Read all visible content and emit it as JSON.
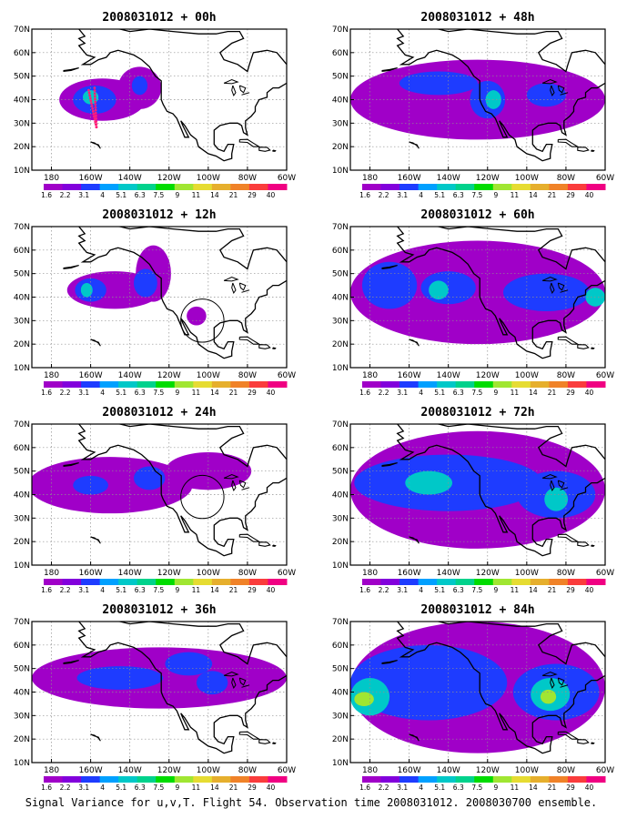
{
  "caption": "Signal Variance for u,v,T. Flight 54. Observation time 2008031012. 2008030700 ensemble.",
  "chart_data": [
    {
      "type": "heatmap",
      "title": "2008031012 + 00h",
      "xticks": [
        "180",
        "160W",
        "140W",
        "120W",
        "100W",
        "80W",
        "60W"
      ],
      "yticks": [
        "10N",
        "20N",
        "30N",
        "40N",
        "50N",
        "60N",
        "70N"
      ],
      "xlim": [
        -190,
        -60
      ],
      "ylim": [
        10,
        70
      ],
      "grid": true,
      "colorbar": {
        "levels": [
          "1.6",
          "2.2",
          "3.1",
          "4",
          "5.1",
          "6.3",
          "7.5",
          "9",
          "11",
          "14",
          "21",
          "29",
          "40"
        ],
        "colors": [
          "#a000c8",
          "#8200dc",
          "#1e3cff",
          "#00a0ff",
          "#00c8c8",
          "#00d28c",
          "#00dc00",
          "#a0e632",
          "#e6dc32",
          "#e6af2d",
          "#f08228",
          "#fa3c3c",
          "#f00082"
        ]
      },
      "regions": [
        {
          "lon": -154,
          "lat": 40,
          "rx": 22,
          "ry": 9,
          "level": "1.6"
        },
        {
          "lon": -135,
          "lat": 45,
          "rx": 11,
          "ry": 9,
          "level": "1.6"
        },
        {
          "lon": -158,
          "lat": 40,
          "rx": 11,
          "ry": 6,
          "level": "3.1"
        },
        {
          "lon": -135,
          "lat": 46,
          "rx": 4,
          "ry": 4,
          "level": "3.1"
        },
        {
          "lon": -160,
          "lat": 41,
          "rx": 4,
          "ry": 3,
          "level": "5.1"
        }
      ],
      "circles": [],
      "track": true
    },
    {
      "type": "heatmap",
      "title": "2008031012 + 48h",
      "xticks": [
        "180",
        "160W",
        "140W",
        "120W",
        "100W",
        "80W",
        "60W"
      ],
      "yticks": [
        "10N",
        "20N",
        "30N",
        "40N",
        "50N",
        "60N",
        "70N"
      ],
      "xlim": [
        -190,
        -60
      ],
      "ylim": [
        10,
        70
      ],
      "grid": true,
      "colorbar": {
        "levels": [
          "1.6",
          "2.2",
          "3.1",
          "4",
          "5.1",
          "6.3",
          "7.5",
          "9",
          "11",
          "14",
          "21",
          "29",
          "40"
        ],
        "colors": [
          "#a000c8",
          "#8200dc",
          "#1e3cff",
          "#00a0ff",
          "#00c8c8",
          "#00d28c",
          "#00dc00",
          "#a0e632",
          "#e6dc32",
          "#e6af2d",
          "#f08228",
          "#fa3c3c",
          "#f00082"
        ]
      },
      "regions": [
        {
          "lon": -125,
          "lat": 40,
          "rx": 65,
          "ry": 17,
          "level": "1.6"
        },
        {
          "lon": -145,
          "lat": 47,
          "rx": 20,
          "ry": 5,
          "level": "3.1"
        },
        {
          "lon": -120,
          "lat": 40,
          "rx": 9,
          "ry": 8,
          "level": "3.1"
        },
        {
          "lon": -90,
          "lat": 42,
          "rx": 10,
          "ry": 5,
          "level": "3.1"
        },
        {
          "lon": -117,
          "lat": 40,
          "rx": 4,
          "ry": 4,
          "level": "5.1"
        }
      ],
      "circles": [],
      "track": false
    },
    {
      "type": "heatmap",
      "title": "2008031012 + 12h",
      "xticks": [
        "180",
        "160W",
        "140W",
        "120W",
        "100W",
        "80W",
        "60W"
      ],
      "yticks": [
        "10N",
        "20N",
        "30N",
        "40N",
        "50N",
        "60N",
        "70N"
      ],
      "xlim": [
        -190,
        -60
      ],
      "ylim": [
        10,
        70
      ],
      "grid": true,
      "colorbar": {
        "levels": [
          "1.6",
          "2.2",
          "3.1",
          "4",
          "5.1",
          "6.3",
          "7.5",
          "9",
          "11",
          "14",
          "21",
          "29",
          "40"
        ],
        "colors": [
          "#a000c8",
          "#8200dc",
          "#1e3cff",
          "#00a0ff",
          "#00c8c8",
          "#00d28c",
          "#00dc00",
          "#a0e632",
          "#e6dc32",
          "#e6af2d",
          "#f08228",
          "#fa3c3c",
          "#f00082"
        ]
      },
      "regions": [
        {
          "lon": -148,
          "lat": 43,
          "rx": 24,
          "ry": 8,
          "level": "1.6"
        },
        {
          "lon": -128,
          "lat": 50,
          "rx": 9,
          "ry": 12,
          "level": "1.6"
        },
        {
          "lon": -106,
          "lat": 32,
          "rx": 5,
          "ry": 4,
          "level": "1.6"
        },
        {
          "lon": -160,
          "lat": 43,
          "rx": 8,
          "ry": 5,
          "level": "3.1"
        },
        {
          "lon": -132,
          "lat": 46,
          "rx": 6,
          "ry": 6,
          "level": "3.1"
        },
        {
          "lon": -162,
          "lat": 43,
          "rx": 3,
          "ry": 3,
          "level": "5.1"
        }
      ],
      "circles": [
        {
          "lon": -103,
          "lat": 30,
          "r": 11
        }
      ],
      "track": false
    },
    {
      "type": "heatmap",
      "title": "2008031012 + 60h",
      "xticks": [
        "180",
        "160W",
        "140W",
        "120W",
        "100W",
        "80W",
        "60W"
      ],
      "yticks": [
        "10N",
        "20N",
        "30N",
        "40N",
        "50N",
        "60N",
        "70N"
      ],
      "xlim": [
        -190,
        -60
      ],
      "ylim": [
        10,
        70
      ],
      "grid": true,
      "colorbar": {
        "levels": [
          "1.6",
          "2.2",
          "3.1",
          "4",
          "5.1",
          "6.3",
          "7.5",
          "9",
          "11",
          "14",
          "21",
          "29",
          "40"
        ],
        "colors": [
          "#a000c8",
          "#8200dc",
          "#1e3cff",
          "#00a0ff",
          "#00c8c8",
          "#00d28c",
          "#00dc00",
          "#a0e632",
          "#e6dc32",
          "#e6af2d",
          "#f08228",
          "#fa3c3c",
          "#f00082"
        ]
      },
      "regions": [
        {
          "lon": -125,
          "lat": 42,
          "rx": 65,
          "ry": 22,
          "level": "1.6"
        },
        {
          "lon": -170,
          "lat": 45,
          "rx": 14,
          "ry": 10,
          "level": "3.1"
        },
        {
          "lon": -140,
          "lat": 44,
          "rx": 14,
          "ry": 7,
          "level": "3.1"
        },
        {
          "lon": -90,
          "lat": 42,
          "rx": 22,
          "ry": 8,
          "level": "3.1"
        },
        {
          "lon": -145,
          "lat": 43,
          "rx": 5,
          "ry": 4,
          "level": "5.1"
        },
        {
          "lon": -65,
          "lat": 40,
          "rx": 5,
          "ry": 4,
          "level": "5.1"
        }
      ],
      "circles": [],
      "track": false
    },
    {
      "type": "heatmap",
      "title": "2008031012 + 24h",
      "xticks": [
        "180",
        "160W",
        "140W",
        "120W",
        "100W",
        "80W",
        "60W"
      ],
      "yticks": [
        "10N",
        "20N",
        "30N",
        "40N",
        "50N",
        "60N",
        "70N"
      ],
      "xlim": [
        -190,
        -60
      ],
      "ylim": [
        10,
        70
      ],
      "grid": true,
      "colorbar": {
        "levels": [
          "1.6",
          "2.2",
          "3.1",
          "4",
          "5.1",
          "6.3",
          "7.5",
          "9",
          "11",
          "14",
          "21",
          "29",
          "40"
        ],
        "colors": [
          "#a000c8",
          "#8200dc",
          "#1e3cff",
          "#00a0ff",
          "#00c8c8",
          "#00d28c",
          "#00dc00",
          "#a0e632",
          "#e6dc32",
          "#e6af2d",
          "#f08228",
          "#fa3c3c",
          "#f00082"
        ]
      },
      "regions": [
        {
          "lon": -150,
          "lat": 44,
          "rx": 42,
          "ry": 12,
          "level": "1.6"
        },
        {
          "lon": -100,
          "lat": 50,
          "rx": 22,
          "ry": 8,
          "level": "1.6"
        },
        {
          "lon": -160,
          "lat": 44,
          "rx": 9,
          "ry": 4,
          "level": "3.1"
        },
        {
          "lon": -130,
          "lat": 47,
          "rx": 8,
          "ry": 5,
          "level": "3.1"
        }
      ],
      "circles": [
        {
          "lon": -103,
          "lat": 39,
          "r": 11
        }
      ],
      "track": false
    },
    {
      "type": "heatmap",
      "title": "2008031012 + 72h",
      "xticks": [
        "180",
        "160W",
        "140W",
        "120W",
        "100W",
        "80W",
        "60W"
      ],
      "yticks": [
        "10N",
        "20N",
        "30N",
        "40N",
        "50N",
        "60N",
        "70N"
      ],
      "xlim": [
        -190,
        -60
      ],
      "ylim": [
        10,
        70
      ],
      "grid": true,
      "colorbar": {
        "levels": [
          "1.6",
          "2.2",
          "3.1",
          "4",
          "5.1",
          "6.3",
          "7.5",
          "9",
          "11",
          "14",
          "21",
          "29",
          "40"
        ],
        "colors": [
          "#a000c8",
          "#8200dc",
          "#1e3cff",
          "#00a0ff",
          "#00c8c8",
          "#00d28c",
          "#00dc00",
          "#a0e632",
          "#e6dc32",
          "#e6af2d",
          "#f08228",
          "#fa3c3c",
          "#f00082"
        ]
      },
      "regions": [
        {
          "lon": -125,
          "lat": 42,
          "rx": 65,
          "ry": 25,
          "level": "1.6"
        },
        {
          "lon": -140,
          "lat": 45,
          "rx": 48,
          "ry": 12,
          "level": "3.1"
        },
        {
          "lon": -85,
          "lat": 40,
          "rx": 20,
          "ry": 10,
          "level": "3.1"
        },
        {
          "lon": -150,
          "lat": 45,
          "rx": 12,
          "ry": 5,
          "level": "5.1"
        },
        {
          "lon": -85,
          "lat": 38,
          "rx": 6,
          "ry": 5,
          "level": "5.1"
        }
      ],
      "circles": [],
      "track": false
    },
    {
      "type": "heatmap",
      "title": "2008031012 + 36h",
      "xticks": [
        "180",
        "160W",
        "140W",
        "120W",
        "100W",
        "80W",
        "60W"
      ],
      "yticks": [
        "10N",
        "20N",
        "30N",
        "40N",
        "50N",
        "60N",
        "70N"
      ],
      "xlim": [
        -190,
        -60
      ],
      "ylim": [
        10,
        70
      ],
      "grid": true,
      "colorbar": {
        "levels": [
          "1.6",
          "2.2",
          "3.1",
          "4",
          "5.1",
          "6.3",
          "7.5",
          "9",
          "11",
          "14",
          "21",
          "29",
          "40"
        ],
        "colors": [
          "#a000c8",
          "#8200dc",
          "#1e3cff",
          "#00a0ff",
          "#00c8c8",
          "#00d28c",
          "#00dc00",
          "#a0e632",
          "#e6dc32",
          "#e6af2d",
          "#f08228",
          "#fa3c3c",
          "#f00082"
        ]
      },
      "regions": [
        {
          "lon": -125,
          "lat": 46,
          "rx": 65,
          "ry": 13,
          "level": "1.6"
        },
        {
          "lon": -145,
          "lat": 46,
          "rx": 22,
          "ry": 5,
          "level": "3.1"
        },
        {
          "lon": -110,
          "lat": 52,
          "rx": 12,
          "ry": 5,
          "level": "3.1"
        },
        {
          "lon": -98,
          "lat": 44,
          "rx": 8,
          "ry": 5,
          "level": "3.1"
        }
      ],
      "circles": [],
      "track": false
    },
    {
      "type": "heatmap",
      "title": "2008031012 + 84h",
      "xticks": [
        "180",
        "160W",
        "140W",
        "120W",
        "100W",
        "80W",
        "60W"
      ],
      "yticks": [
        "10N",
        "20N",
        "30N",
        "40N",
        "50N",
        "60N",
        "70N"
      ],
      "xlim": [
        -190,
        -60
      ],
      "ylim": [
        10,
        70
      ],
      "grid": true,
      "colorbar": {
        "levels": [
          "1.6",
          "2.2",
          "3.1",
          "4",
          "5.1",
          "6.3",
          "7.5",
          "9",
          "11",
          "14",
          "21",
          "29",
          "40"
        ],
        "colors": [
          "#a000c8",
          "#8200dc",
          "#1e3cff",
          "#00a0ff",
          "#00c8c8",
          "#00d28c",
          "#00dc00",
          "#a0e632",
          "#e6dc32",
          "#e6af2d",
          "#f08228",
          "#fa3c3c",
          "#f00082"
        ]
      },
      "regions": [
        {
          "lon": -125,
          "lat": 42,
          "rx": 65,
          "ry": 28,
          "level": "1.6"
        },
        {
          "lon": -150,
          "lat": 44,
          "rx": 40,
          "ry": 16,
          "level": "3.1"
        },
        {
          "lon": -85,
          "lat": 40,
          "rx": 22,
          "ry": 12,
          "level": "3.1"
        },
        {
          "lon": -180,
          "lat": 38,
          "rx": 10,
          "ry": 8,
          "level": "5.1"
        },
        {
          "lon": -88,
          "lat": 39,
          "rx": 10,
          "ry": 7,
          "level": "5.1"
        },
        {
          "lon": -183,
          "lat": 37,
          "rx": 5,
          "ry": 3,
          "level": "9"
        },
        {
          "lon": -89,
          "lat": 38,
          "rx": 4,
          "ry": 3,
          "level": "9"
        }
      ],
      "circles": [],
      "track": false
    }
  ]
}
